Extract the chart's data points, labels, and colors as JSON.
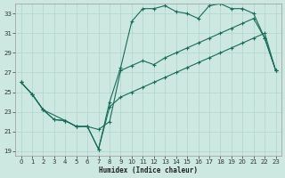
{
  "xlabel": "Humidex (Indice chaleur)",
  "bg_color": "#cce8e0",
  "grid_color": "#b0d4cc",
  "line_color": "#1a6b5a",
  "xlim": [
    -0.5,
    23.5
  ],
  "ylim": [
    18.5,
    34.0
  ],
  "xticks": [
    0,
    1,
    2,
    3,
    4,
    5,
    6,
    7,
    8,
    9,
    10,
    11,
    12,
    13,
    14,
    15,
    16,
    17,
    18,
    19,
    20,
    21,
    22,
    23
  ],
  "yticks": [
    19,
    21,
    23,
    25,
    27,
    29,
    31,
    33
  ],
  "line1_x": [
    0,
    1,
    2,
    3,
    4,
    5,
    6,
    7,
    8,
    9,
    10,
    11,
    12,
    13,
    14,
    15,
    16,
    17,
    18,
    19,
    20,
    21,
    22,
    23
  ],
  "line1_y": [
    26.0,
    24.8,
    23.2,
    22.2,
    22.1,
    21.5,
    21.5,
    21.2,
    22.0,
    27.2,
    27.7,
    28.2,
    27.8,
    28.5,
    29.0,
    29.5,
    30.0,
    30.5,
    31.0,
    31.5,
    32.0,
    32.5,
    30.5,
    27.2
  ],
  "line2_x": [
    0,
    1,
    2,
    3,
    4,
    5,
    6,
    7,
    8,
    9,
    10,
    11,
    12,
    13,
    14,
    15,
    16,
    17,
    18,
    19,
    20,
    21,
    22,
    23
  ],
  "line2_y": [
    26.0,
    24.8,
    23.2,
    22.2,
    22.1,
    21.5,
    21.5,
    19.2,
    24.0,
    27.5,
    32.2,
    33.5,
    33.5,
    33.8,
    33.2,
    33.0,
    32.5,
    33.8,
    34.0,
    33.5,
    33.5,
    33.0,
    30.5,
    27.2
  ],
  "line3_x": [
    0,
    1,
    2,
    4,
    5,
    6,
    7,
    8,
    9,
    10,
    11,
    12,
    13,
    14,
    15,
    16,
    17,
    18,
    19,
    20,
    21,
    22,
    23
  ],
  "line3_y": [
    26.0,
    24.8,
    23.2,
    22.1,
    21.5,
    21.5,
    19.2,
    23.5,
    24.5,
    25.0,
    25.5,
    26.0,
    26.5,
    27.0,
    27.5,
    28.0,
    28.5,
    29.0,
    29.5,
    30.0,
    30.5,
    31.0,
    27.2
  ]
}
